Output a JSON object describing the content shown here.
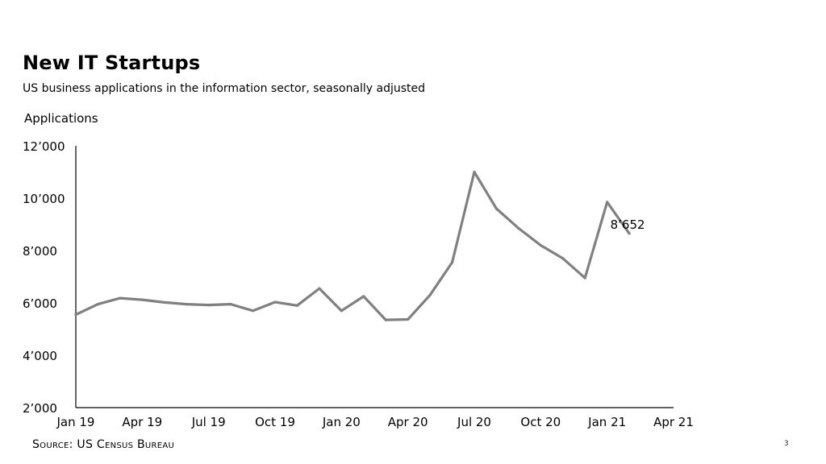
{
  "page": {
    "title": "New IT Startups",
    "subtitle": "US business applications in the information sector, seasonally adjusted",
    "source": "Source: US Census Bureau",
    "page_number": "3"
  },
  "chart_data": {
    "type": "line",
    "title": "New IT Startups",
    "subtitle": "US business applications in the information sector, seasonally adjusted",
    "ylabel": "Applications",
    "xlabel": "",
    "ylim": [
      2000,
      12000
    ],
    "yticks": [
      {
        "value": 2000,
        "label": "2’000"
      },
      {
        "value": 4000,
        "label": "4’000"
      },
      {
        "value": 6000,
        "label": "6’000"
      },
      {
        "value": 8000,
        "label": "8’000"
      },
      {
        "value": 10000,
        "label": "10’000"
      },
      {
        "value": 12000,
        "label": "12’000"
      }
    ],
    "xlim": [
      "2019-01",
      "2021-04"
    ],
    "xticks": [
      {
        "value": "2019-01",
        "label": "Jan 19"
      },
      {
        "value": "2019-04",
        "label": "Apr 19"
      },
      {
        "value": "2019-07",
        "label": "Jul 19"
      },
      {
        "value": "2019-10",
        "label": "Oct 19"
      },
      {
        "value": "2020-01",
        "label": "Jan 20"
      },
      {
        "value": "2020-04",
        "label": "Apr 20"
      },
      {
        "value": "2020-07",
        "label": "Jul 20"
      },
      {
        "value": "2020-10",
        "label": "Oct 20"
      },
      {
        "value": "2021-01",
        "label": "Jan 21"
      },
      {
        "value": "2021-04",
        "label": "Apr 21"
      }
    ],
    "grid": false,
    "legend": "none",
    "series": [
      {
        "color": "#808080",
        "points": [
          {
            "x": "2019-01",
            "y": 5550
          },
          {
            "x": "2019-02",
            "y": 5950
          },
          {
            "x": "2019-03",
            "y": 6180
          },
          {
            "x": "2019-04",
            "y": 6120
          },
          {
            "x": "2019-05",
            "y": 6020
          },
          {
            "x": "2019-06",
            "y": 5950
          },
          {
            "x": "2019-07",
            "y": 5920
          },
          {
            "x": "2019-08",
            "y": 5950
          },
          {
            "x": "2019-09",
            "y": 5700
          },
          {
            "x": "2019-10",
            "y": 6030
          },
          {
            "x": "2019-11",
            "y": 5900
          },
          {
            "x": "2019-12",
            "y": 6550
          },
          {
            "x": "2020-01",
            "y": 5700
          },
          {
            "x": "2020-02",
            "y": 6250
          },
          {
            "x": "2020-03",
            "y": 5350
          },
          {
            "x": "2020-04",
            "y": 5370
          },
          {
            "x": "2020-05",
            "y": 6300
          },
          {
            "x": "2020-06",
            "y": 7550
          },
          {
            "x": "2020-07",
            "y": 11000
          },
          {
            "x": "2020-08",
            "y": 9600
          },
          {
            "x": "2020-09",
            "y": 8850
          },
          {
            "x": "2020-10",
            "y": 8200
          },
          {
            "x": "2020-11",
            "y": 7700
          },
          {
            "x": "2020-12",
            "y": 6950
          },
          {
            "x": "2021-01",
            "y": 9850
          },
          {
            "x": "2021-02",
            "y": 8652
          }
        ]
      }
    ],
    "annotations": [
      {
        "x": "2021-02",
        "y": 8652,
        "label": "8’652"
      }
    ]
  }
}
